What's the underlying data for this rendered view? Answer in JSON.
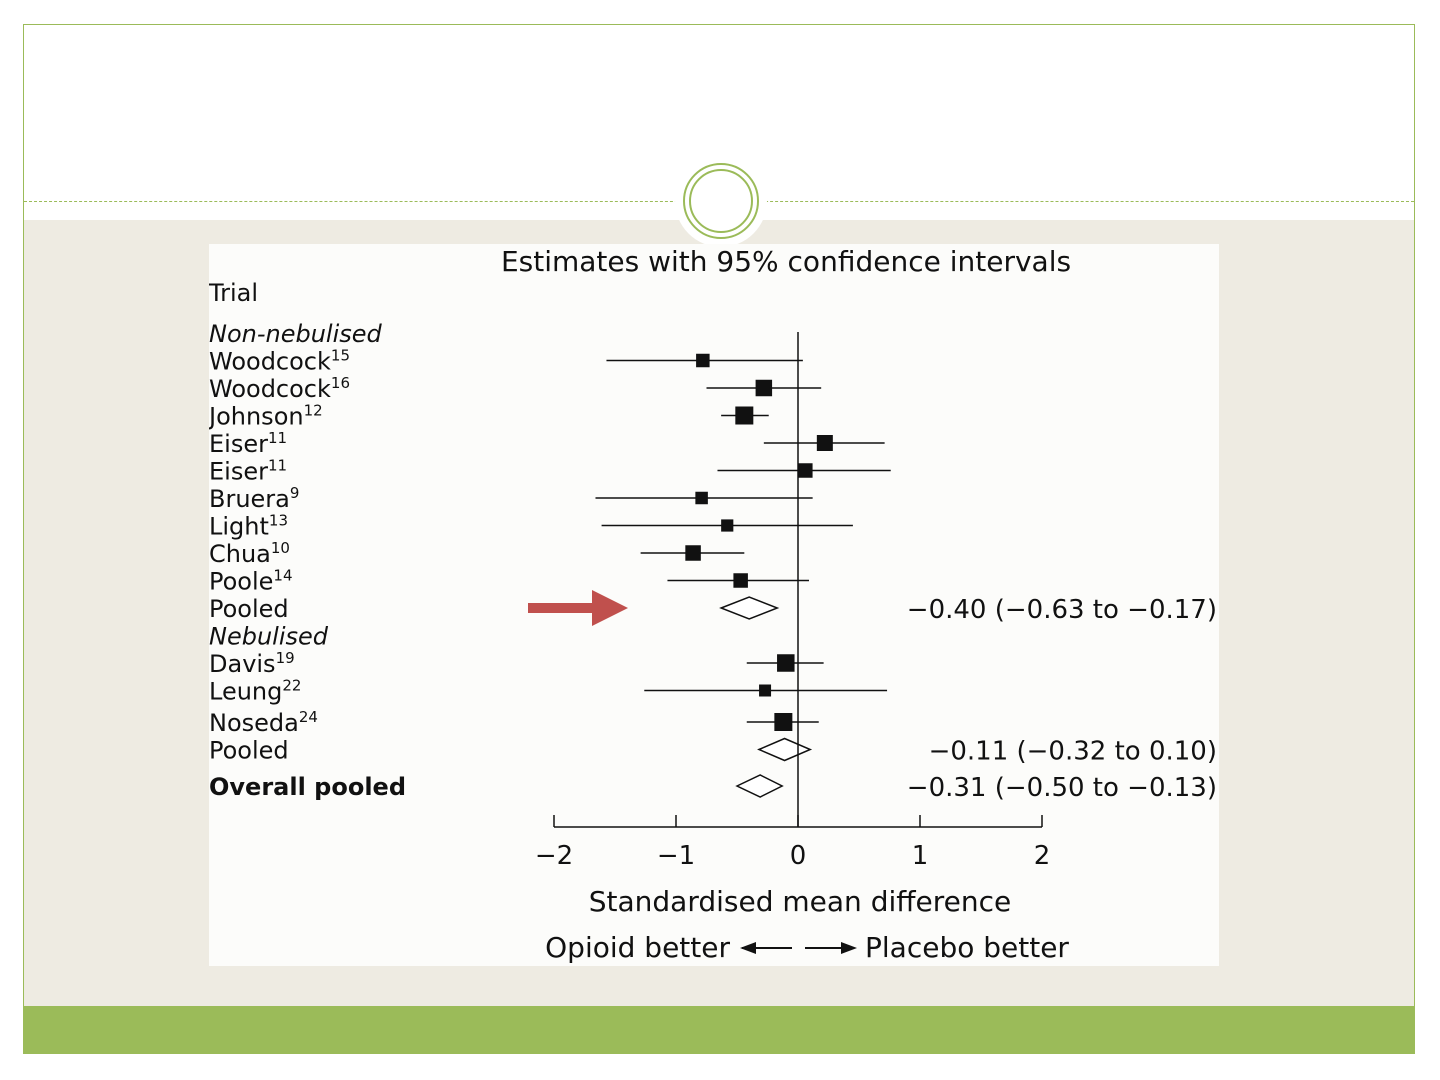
{
  "colors": {
    "accent": "#9bbb59",
    "slide_background": "#eeebe2",
    "arrow": "#c0504d"
  },
  "chart_data": {
    "type": "forest",
    "title": "Estimates with 95% confidence intervals",
    "column_header": "Trial",
    "xlabel": "Standardised mean difference",
    "direction_left": "Opioid better",
    "direction_right": "Placebo better",
    "xlim": [
      -2,
      2
    ],
    "x_ticks": [
      -2,
      -1,
      0,
      1,
      2
    ],
    "x_tick_labels": [
      "−2",
      "−1",
      "0",
      "1",
      "2"
    ],
    "rows": [
      {
        "kind": "group",
        "label": "Non-nebulised"
      },
      {
        "kind": "study",
        "name": "Woodcock",
        "ref": "15",
        "estimate": -0.78,
        "lower": -1.57,
        "upper": 0.04,
        "weight": 0.55
      },
      {
        "kind": "study",
        "name": "Woodcock",
        "ref": "16",
        "estimate": -0.28,
        "lower": -0.75,
        "upper": 0.19,
        "weight": 0.85
      },
      {
        "kind": "study",
        "name": "Johnson",
        "ref": "12",
        "estimate": -0.44,
        "lower": -0.63,
        "upper": -0.24,
        "weight": 1.0
      },
      {
        "kind": "study",
        "name": "Eiser",
        "ref": "11",
        "estimate": 0.22,
        "lower": -0.28,
        "upper": 0.71,
        "weight": 0.8
      },
      {
        "kind": "study",
        "name": "Eiser",
        "ref": "11",
        "estimate": 0.06,
        "lower": -0.66,
        "upper": 0.76,
        "weight": 0.65
      },
      {
        "kind": "study",
        "name": "Bruera",
        "ref": "9",
        "estimate": -0.79,
        "lower": -1.66,
        "upper": 0.12,
        "weight": 0.45
      },
      {
        "kind": "study",
        "name": "Light",
        "ref": "13",
        "estimate": -0.58,
        "lower": -1.61,
        "upper": 0.45,
        "weight": 0.42
      },
      {
        "kind": "study",
        "name": "Chua",
        "ref": "10",
        "estimate": -0.86,
        "lower": -1.29,
        "upper": -0.44,
        "weight": 0.75
      },
      {
        "kind": "study",
        "name": "Poole",
        "ref": "14",
        "estimate": -0.47,
        "lower": -1.07,
        "upper": 0.09,
        "weight": 0.65
      },
      {
        "kind": "pooled",
        "label": "Pooled",
        "estimate": -0.4,
        "lower": -0.63,
        "upper": -0.17,
        "text": "−0.40 (−0.63 to −0.17)"
      },
      {
        "kind": "group",
        "label": "Nebulised"
      },
      {
        "kind": "study",
        "name": "Davis",
        "ref": "19",
        "estimate": -0.1,
        "lower": -0.42,
        "upper": 0.21,
        "weight": 0.95
      },
      {
        "kind": "study",
        "name": "Leung",
        "ref": "22",
        "estimate": -0.27,
        "lower": -1.26,
        "upper": 0.73,
        "weight": 0.4
      },
      {
        "kind": "study",
        "name": "Noseda",
        "ref": "24",
        "estimate": -0.12,
        "lower": -0.42,
        "upper": 0.17,
        "weight": 1.0
      },
      {
        "kind": "pooled",
        "label": "Pooled",
        "estimate": -0.11,
        "lower": -0.32,
        "upper": 0.1,
        "text": "−0.11 (−0.32 to 0.10)"
      },
      {
        "kind": "overall",
        "label": "Overall pooled",
        "estimate": -0.31,
        "lower": -0.5,
        "upper": -0.13,
        "text": "−0.31 (−0.50 to −0.13)"
      }
    ]
  }
}
